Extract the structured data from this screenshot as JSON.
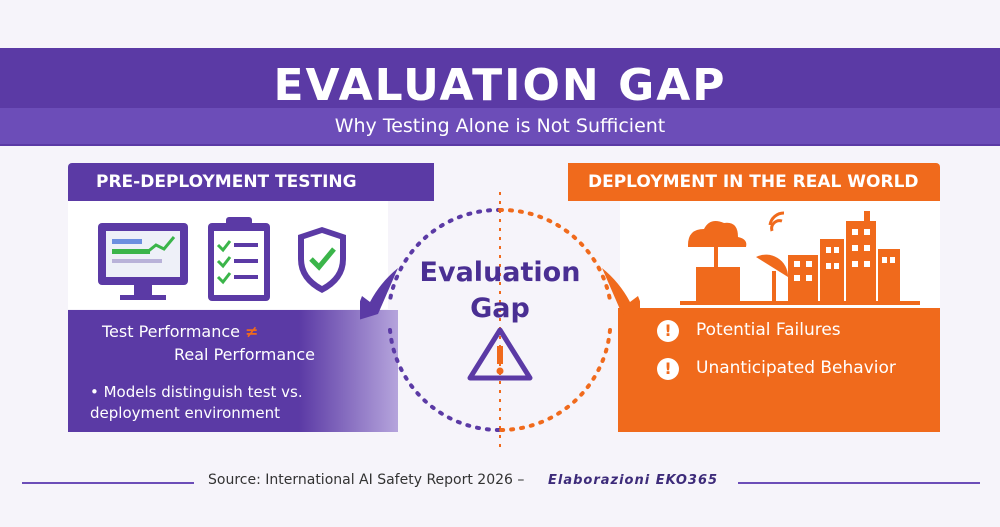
{
  "header": {
    "title": "EVALUATION GAP",
    "subtitle": "Why Testing Alone is Not Sufficient"
  },
  "left": {
    "heading": "PRE-DEPLOYMENT TESTING",
    "line1": "Test Performance",
    "neq": "≠",
    "line2": "Real Performance",
    "bullet": "• Models distinguish test vs. deployment environment"
  },
  "center": {
    "line1": "Evaluation",
    "line2": "Gap"
  },
  "right": {
    "heading": "DEPLOYMENT IN THE REAL WORLD",
    "item1": "Potential Failures",
    "item2": "Unanticipated Behavior"
  },
  "footer": {
    "source": "Source: International AI Safety Report 2026 –",
    "credit": "Elaborazioni EKO365"
  },
  "colors": {
    "purple": "#5b3aa5",
    "orange": "#f06a1c",
    "check_green": "#3bb54a"
  }
}
